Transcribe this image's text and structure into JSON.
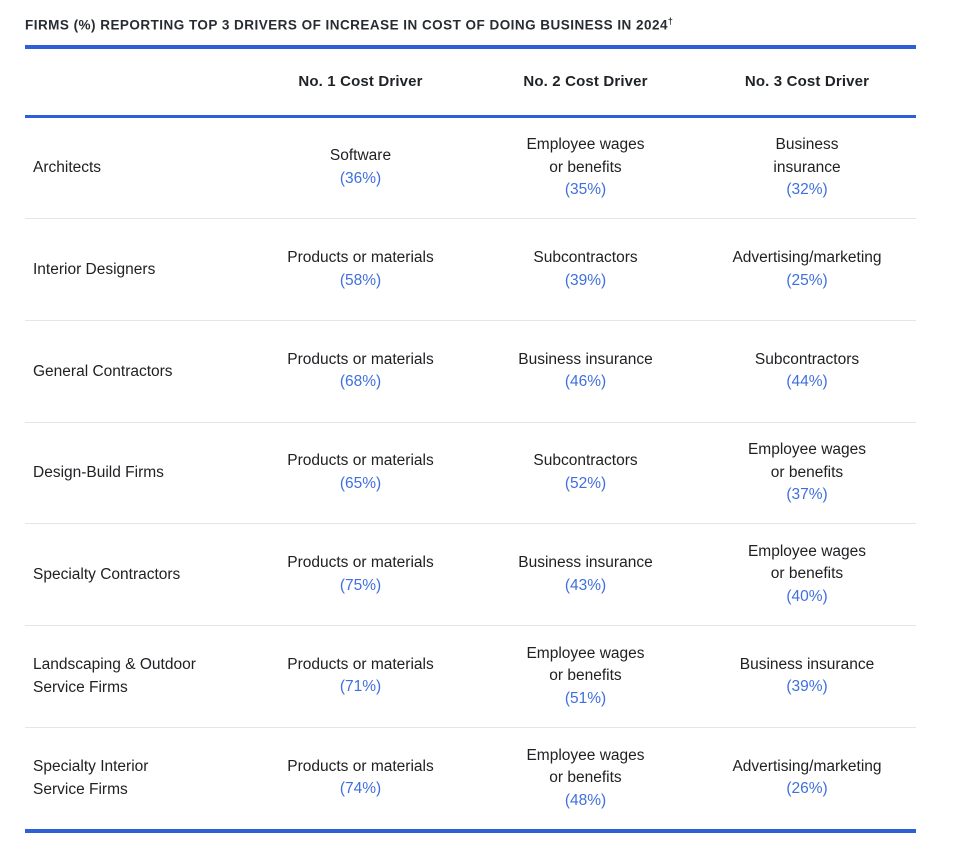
{
  "title": "FIRMS (%) REPORTING TOP 3 DRIVERS OF INCREASE IN COST OF DOING BUSINESS IN 2024",
  "title_sup": "†",
  "colors": {
    "rule_blue": "#2d5fd8",
    "percent_blue": "#3f6fdf",
    "text_dark": "#202124",
    "separator_gray": "#e4e5e6",
    "background": "#ffffff"
  },
  "table": {
    "firm_column_header": "",
    "columns": [
      "No. 1 Cost Driver",
      "No. 2 Cost Driver",
      "No. 3 Cost Driver"
    ],
    "rows": [
      {
        "firm": "Architects",
        "drivers": [
          {
            "name": "Software",
            "pct": "(36%)"
          },
          {
            "name": "Employee wages\nor benefits",
            "pct": "(35%)"
          },
          {
            "name": "Business\ninsurance",
            "pct": "(32%)"
          }
        ]
      },
      {
        "firm": "Interior Designers",
        "drivers": [
          {
            "name": "Products or materials",
            "pct": "(58%)"
          },
          {
            "name": "Subcontractors",
            "pct": "(39%)"
          },
          {
            "name": "Advertising/marketing",
            "pct": "(25%)"
          }
        ]
      },
      {
        "firm": "General Contractors",
        "drivers": [
          {
            "name": "Products or materials",
            "pct": "(68%)"
          },
          {
            "name": "Business insurance",
            "pct": "(46%)"
          },
          {
            "name": "Subcontractors",
            "pct": "(44%)"
          }
        ]
      },
      {
        "firm": "Design-Build Firms",
        "drivers": [
          {
            "name": "Products or materials",
            "pct": "(65%)"
          },
          {
            "name": "Subcontractors",
            "pct": "(52%)"
          },
          {
            "name": "Employee wages\nor benefits",
            "pct": "(37%)"
          }
        ]
      },
      {
        "firm": "Specialty Contractors",
        "drivers": [
          {
            "name": "Products or materials",
            "pct": "(75%)"
          },
          {
            "name": "Business insurance",
            "pct": "(43%)"
          },
          {
            "name": "Employee wages\nor benefits",
            "pct": "(40%)"
          }
        ]
      },
      {
        "firm": "Landscaping & Outdoor\nService Firms",
        "drivers": [
          {
            "name": "Products or materials",
            "pct": "(71%)"
          },
          {
            "name": "Employee wages\nor benefits",
            "pct": "(51%)"
          },
          {
            "name": "Business insurance",
            "pct": "(39%)"
          }
        ]
      },
      {
        "firm": "Specialty Interior\nService Firms",
        "drivers": [
          {
            "name": "Products or materials",
            "pct": "(74%)"
          },
          {
            "name": "Employee wages\nor benefits",
            "pct": "(48%)"
          },
          {
            "name": "Advertising/marketing",
            "pct": "(26%)"
          }
        ]
      }
    ]
  },
  "chart_data": {
    "type": "table",
    "title": "FIRMS (%) REPORTING TOP 3 DRIVERS OF INCREASE IN COST OF DOING BUSINESS IN 2024†",
    "columns": [
      "",
      "No. 1 Cost Driver",
      "No. 2 Cost Driver",
      "No. 3 Cost Driver"
    ],
    "rows": [
      {
        "firm": "Architects",
        "no1": {
          "driver": "Software",
          "pct": 36
        },
        "no2": {
          "driver": "Employee wages or benefits",
          "pct": 35
        },
        "no3": {
          "driver": "Business insurance",
          "pct": 32
        }
      },
      {
        "firm": "Interior Designers",
        "no1": {
          "driver": "Products or materials",
          "pct": 58
        },
        "no2": {
          "driver": "Subcontractors",
          "pct": 39
        },
        "no3": {
          "driver": "Advertising/marketing",
          "pct": 25
        }
      },
      {
        "firm": "General Contractors",
        "no1": {
          "driver": "Products or materials",
          "pct": 68
        },
        "no2": {
          "driver": "Business insurance",
          "pct": 46
        },
        "no3": {
          "driver": "Subcontractors",
          "pct": 44
        }
      },
      {
        "firm": "Design-Build Firms",
        "no1": {
          "driver": "Products or materials",
          "pct": 65
        },
        "no2": {
          "driver": "Subcontractors",
          "pct": 52
        },
        "no3": {
          "driver": "Employee wages or benefits",
          "pct": 37
        }
      },
      {
        "firm": "Specialty Contractors",
        "no1": {
          "driver": "Products or materials",
          "pct": 75
        },
        "no2": {
          "driver": "Business insurance",
          "pct": 43
        },
        "no3": {
          "driver": "Employee wages or benefits",
          "pct": 40
        }
      },
      {
        "firm": "Landscaping & Outdoor Service Firms",
        "no1": {
          "driver": "Products or materials",
          "pct": 71
        },
        "no2": {
          "driver": "Employee wages or benefits",
          "pct": 51
        },
        "no3": {
          "driver": "Business insurance",
          "pct": 39
        }
      },
      {
        "firm": "Specialty Interior Service Firms",
        "no1": {
          "driver": "Products or materials",
          "pct": 74
        },
        "no2": {
          "driver": "Employee wages or benefits",
          "pct": 48
        },
        "no3": {
          "driver": "Advertising/marketing",
          "pct": 26
        }
      }
    ]
  }
}
